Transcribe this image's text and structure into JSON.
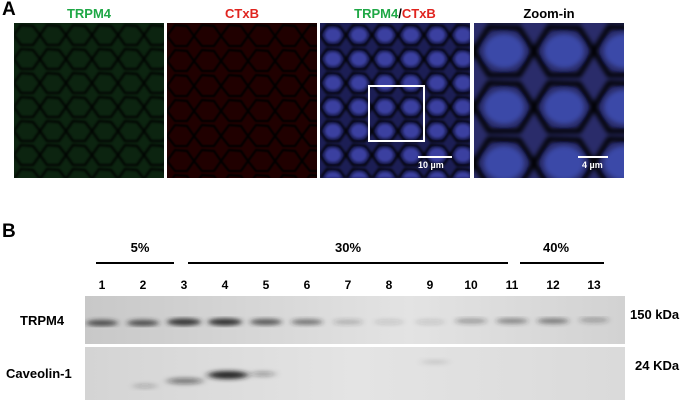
{
  "panel_a": {
    "letter": "A",
    "titles": [
      {
        "text": "TRPM4",
        "color": "#1fa846"
      },
      {
        "text": "CTxB",
        "color": "#e0241f"
      },
      {
        "part1": "TRPM4",
        "sep": "/",
        "part2": "CTxB",
        "color1": "#1fa846",
        "color2": "#e0241f"
      },
      {
        "text": "Zoom-in",
        "color": "#000000"
      }
    ],
    "scalebars": [
      "10 µm",
      "4 µm"
    ]
  },
  "panel_b": {
    "letter": "B",
    "gradient": [
      "5%",
      "30%",
      "40%"
    ],
    "lanes": [
      "1",
      "2",
      "3",
      "4",
      "5",
      "6",
      "7",
      "8",
      "9",
      "10",
      "11",
      "12",
      "13"
    ],
    "rows": [
      {
        "label": "TRPM4",
        "mw": "150 kDa"
      },
      {
        "label": "Caveolin-1",
        "mw": "24 KDa"
      }
    ]
  },
  "colors": {
    "green": "#1fa846",
    "red": "#e0241f"
  }
}
